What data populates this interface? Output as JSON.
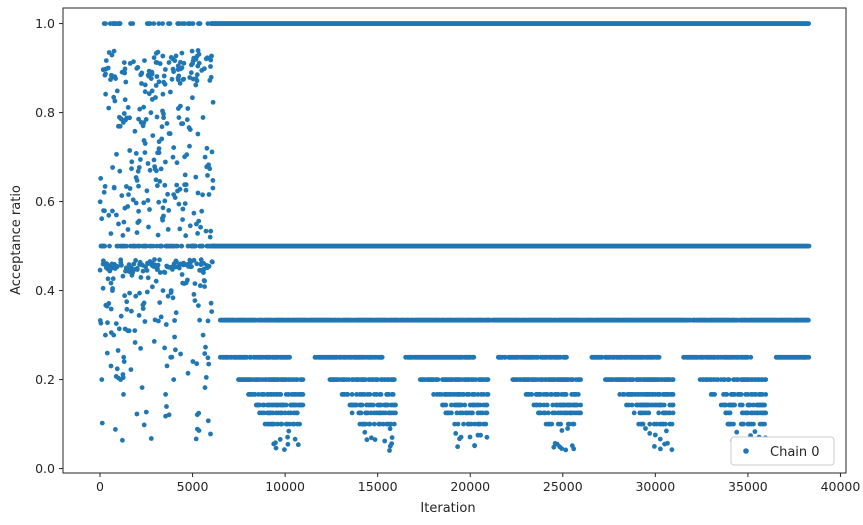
{
  "chart_data": {
    "type": "scatter",
    "title": "",
    "xlabel": "Iteration",
    "ylabel": "Acceptance ratio",
    "xlim": [
      -2000,
      40300
    ],
    "ylim": [
      -0.01,
      1.035
    ],
    "x_ticks": [
      0,
      5000,
      10000,
      15000,
      20000,
      25000,
      30000,
      35000,
      40000
    ],
    "y_ticks": [
      0.0,
      0.2,
      0.4,
      0.6,
      0.8,
      1.0
    ],
    "x_tick_labels": [
      "0",
      "5000",
      "10000",
      "15000",
      "20000",
      "25000",
      "30000",
      "35000",
      "40000"
    ],
    "y_tick_labels": [
      "0.0",
      "0.2",
      "0.4",
      "0.6",
      "0.8",
      "1.0"
    ],
    "grid": false,
    "legend": {
      "position": "lower-right",
      "entries": [
        "Chain 0"
      ]
    },
    "series": [
      {
        "name": "Chain 0",
        "color": "#1f77b4",
        "marker": "circle",
        "description_level_bands": [
          {
            "x": [
              0,
              38300
            ],
            "y": 1.0,
            "note": "dense from ~6000 onward, sparse before"
          },
          {
            "x": [
              0,
              38300
            ],
            "y": 0.5
          },
          {
            "x": [
              0,
              6100
            ],
            "y_range": [
              0.05,
              0.94
            ],
            "note": "early burn-in region, wide spread"
          },
          {
            "x": [
              6500,
              38300
            ],
            "y": 0.333
          },
          {
            "x": [
              6500,
              38300
            ],
            "y": 0.25
          },
          {
            "x": [
              6500,
              38300
            ],
            "y_range": [
              0.04,
              0.2
            ],
            "note": "periodic lower clusters"
          }
        ],
        "periodic_cluster_centers_x": [
          10000,
          15000,
          20000,
          25000,
          30000,
          35000
        ]
      }
    ]
  }
}
